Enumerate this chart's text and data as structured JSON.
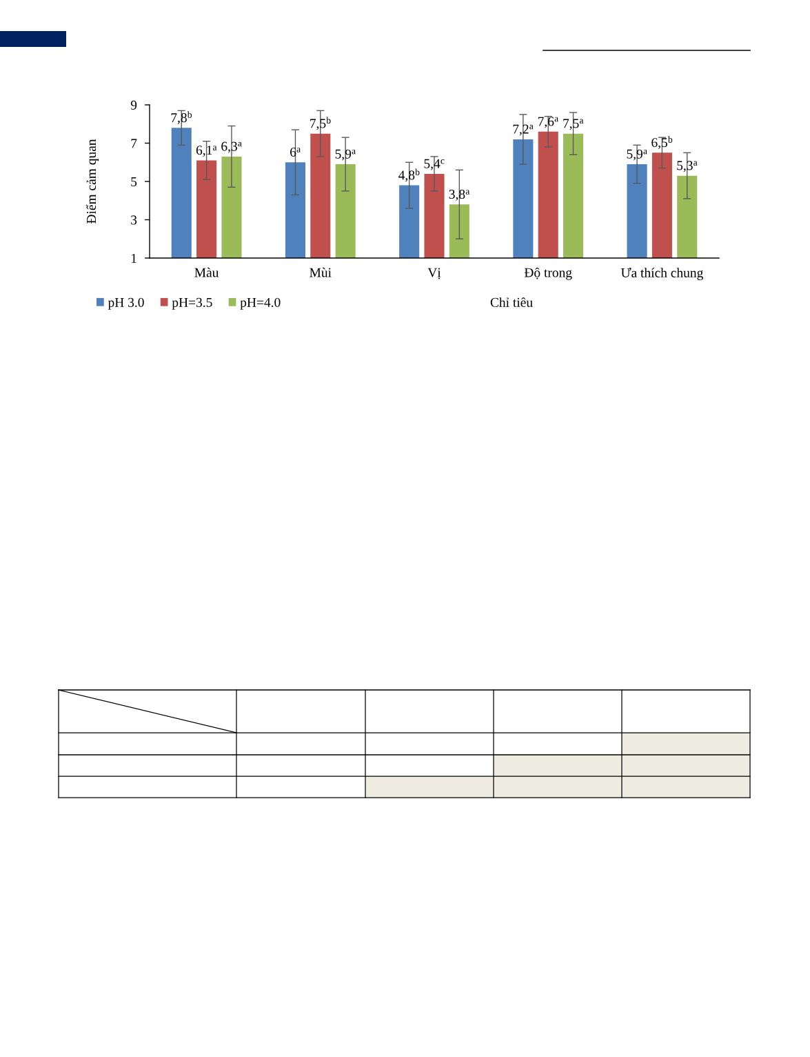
{
  "chart_data": {
    "type": "bar",
    "ylabel": "Điểm cảm quan",
    "xlabel": "Chỉ tiêu",
    "categories": [
      "Màu",
      "Mùi",
      "Vị",
      "Độ trong",
      "Ưa thích chung"
    ],
    "series": [
      {
        "name": "pH 3.0",
        "color": "#4f81bd",
        "values": [
          7.8,
          6,
          4.8,
          7.2,
          5.9
        ],
        "errors": [
          0.9,
          1.7,
          1.2,
          1.3,
          1.0
        ],
        "value_labels": [
          "7,8$^{b}$",
          "6$^{a}$",
          "4,8$^{b}$",
          "7,2$^{a}$",
          "5,9$^{a}$"
        ]
      },
      {
        "name": "pH=3.5",
        "color": "#c0504d",
        "values": [
          6.1,
          7.5,
          5.4,
          7.6,
          6.5
        ],
        "errors": [
          1.0,
          1.2,
          0.9,
          0.8,
          0.8
        ],
        "value_labels": [
          "6,1$^{a}$",
          "7,5$^{b}$",
          "5,4$^{c}$",
          "7,6$^{a}$",
          "6,5$^{b}$"
        ]
      },
      {
        "name": "pH=4.0",
        "color": "#9bbb59",
        "values": [
          6.3,
          5.9,
          3.8,
          7.5,
          5.3
        ],
        "errors": [
          1.6,
          1.4,
          1.8,
          1.1,
          1.2
        ],
        "value_labels": [
          "6,3$^{a}$",
          "5,9$^{a}$",
          "3,8$^{a}$",
          "7,5$^{a}$",
          "5,3$^{a}$"
        ]
      }
    ],
    "ylim": [
      1,
      9
    ],
    "yticks": [
      1,
      3,
      5,
      7,
      9
    ],
    "grid": false,
    "legend": "bottom left"
  }
}
